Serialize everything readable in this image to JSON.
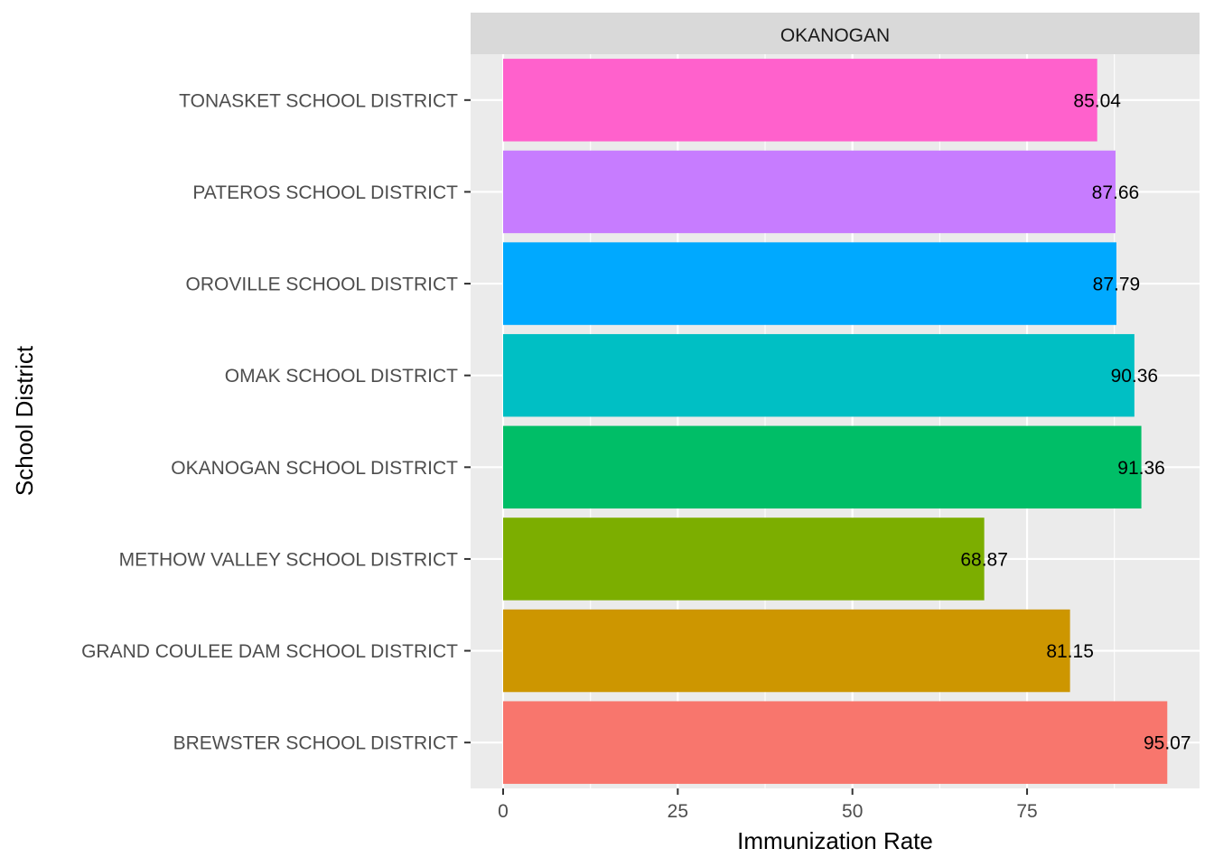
{
  "chart_data": {
    "type": "bar",
    "orientation": "horizontal",
    "facet": "OKANOGAN",
    "xlabel": "Immunization Rate",
    "ylabel": "School District",
    "xlim": [
      0,
      100
    ],
    "x_ticks": [
      0,
      25,
      50,
      75
    ],
    "grid": true,
    "legend": "none",
    "categories": [
      "BREWSTER SCHOOL DISTRICT",
      "GRAND COULEE DAM SCHOOL DISTRICT",
      "METHOW VALLEY SCHOOL DISTRICT",
      "OKANOGAN SCHOOL DISTRICT",
      "OMAK SCHOOL DISTRICT",
      "OROVILLE SCHOOL DISTRICT",
      "PATEROS SCHOOL DISTRICT",
      "TONASKET SCHOOL DISTRICT"
    ],
    "values": [
      95.07,
      81.15,
      68.87,
      91.36,
      90.36,
      87.79,
      87.66,
      85.04
    ],
    "value_labels": [
      "95.07",
      "81.15",
      "68.87",
      "91.36",
      "90.36",
      "87.79",
      "87.66",
      "85.04"
    ],
    "colors": [
      "#F8766D",
      "#CD9600",
      "#7CAE00",
      "#00BE67",
      "#00BFC4",
      "#00A9FF",
      "#C77CFF",
      "#FF61CC"
    ]
  }
}
